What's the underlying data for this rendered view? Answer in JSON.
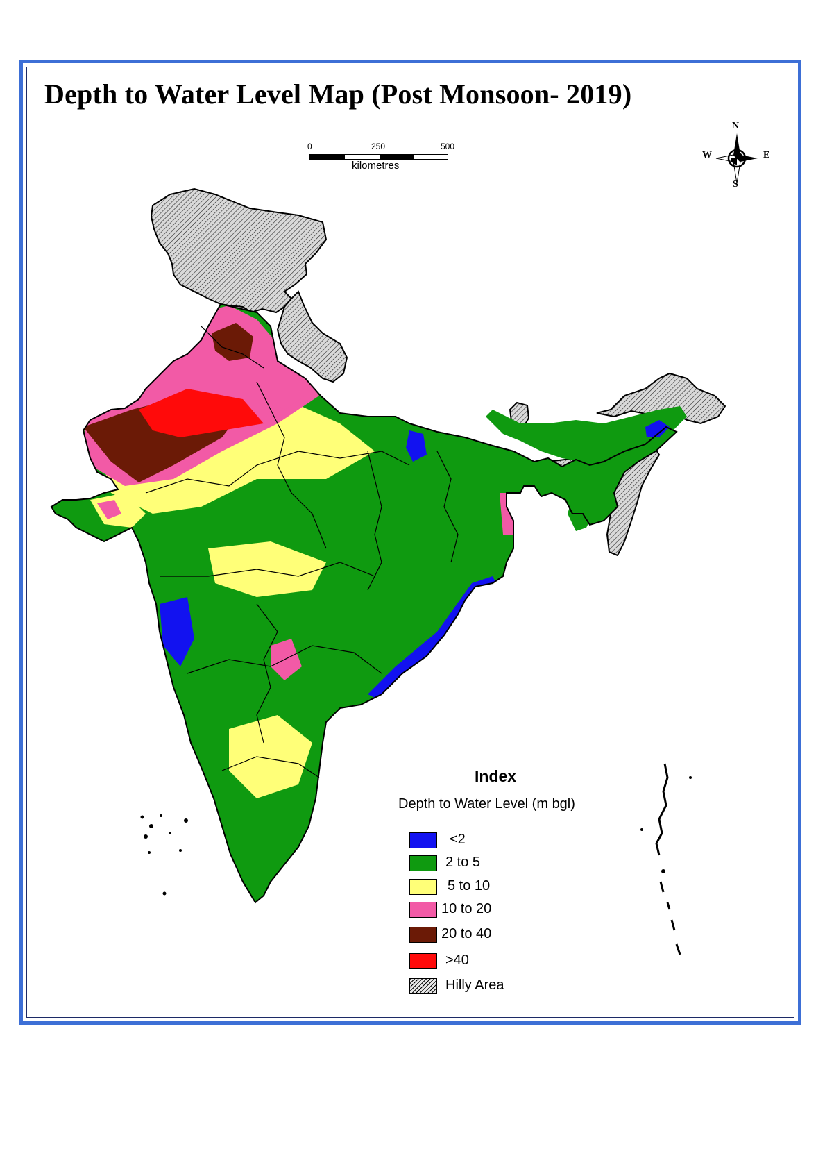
{
  "title": "Depth to Water Level Map (Post Monsoon- 2019)",
  "scale": {
    "ticks": [
      "0",
      "250",
      "500"
    ],
    "unit": "kilometres"
  },
  "north_arrow": {
    "n": "N",
    "s": "S",
    "e": "E",
    "w": "W"
  },
  "legend": {
    "title": "Index",
    "subtitle": "Depth to Water Level (m bgl)",
    "items": [
      {
        "label": "<2",
        "color": "#1212f0"
      },
      {
        "label": "2 to 5",
        "color": "#0f9a10"
      },
      {
        "label": "5 to 10",
        "color": "#ffff78"
      },
      {
        "label": "10 to 20",
        "color": "#f25aa6"
      },
      {
        "label": "20 to 40",
        "color": "#6b1a06"
      },
      {
        "label": ">40",
        "color": "#ff0a0a"
      },
      {
        "label": "Hilly Area",
        "color": "hatched"
      }
    ]
  },
  "map": {
    "land_color": "#0f9a10",
    "hilly_color": "#d9d9d9",
    "border_color": "#000000"
  }
}
